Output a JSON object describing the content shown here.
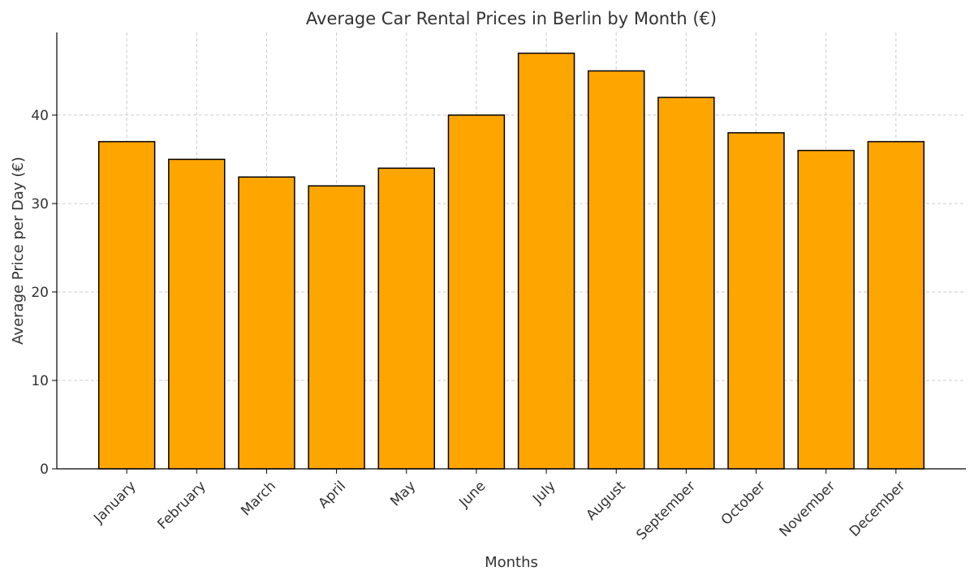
{
  "chart_data": {
    "type": "bar",
    "title": "Average Car Rental Prices in Berlin by Month (€)",
    "xlabel": "Months",
    "ylabel": "Average Price per Day (€)",
    "categories": [
      "January",
      "February",
      "March",
      "April",
      "May",
      "June",
      "July",
      "August",
      "September",
      "October",
      "November",
      "December"
    ],
    "values": [
      37,
      35,
      33,
      32,
      34,
      40,
      47,
      45,
      42,
      38,
      36,
      37
    ],
    "ylim": [
      0,
      49.35
    ],
    "yticks": [
      0,
      10,
      20,
      30,
      40
    ],
    "grid": true,
    "bar_color": "#FFA500",
    "edge_color": "#000000"
  }
}
